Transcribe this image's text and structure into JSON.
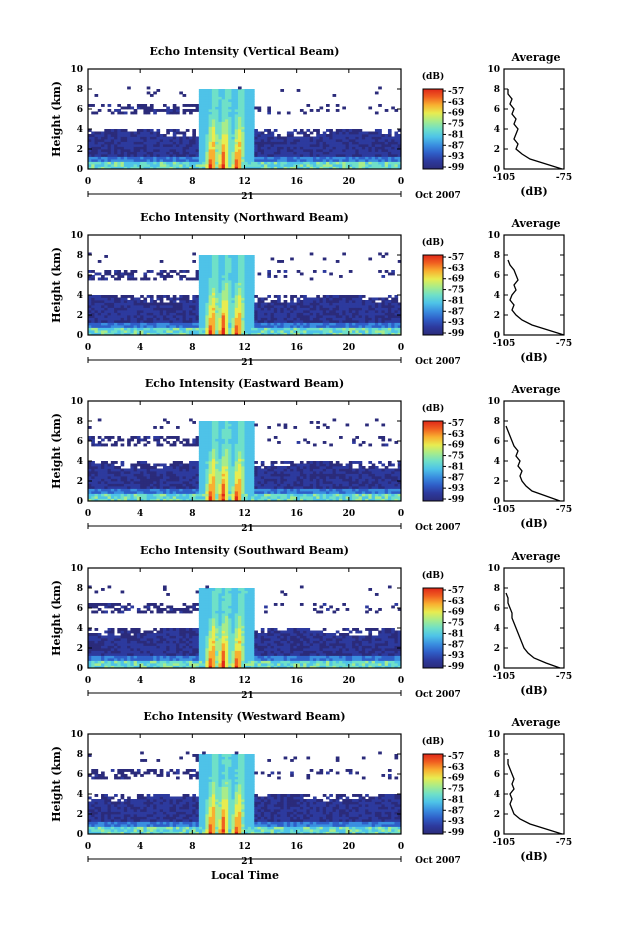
{
  "page": {
    "xlabel": "Local Time"
  },
  "panel_common": {
    "ylabel": "Height (km)",
    "y_ticks": [
      "0",
      "2",
      "4",
      "6",
      "8",
      "10"
    ],
    "x_ticks": [
      "0",
      "4",
      "8",
      "12",
      "16",
      "20",
      "0"
    ],
    "date_day": "21",
    "date_label": "Oct 2007",
    "colorbar_unit": "(dB)",
    "colorbar_ticks": [
      "-57",
      "-63",
      "-69",
      "-75",
      "-81",
      "-87",
      "-93",
      "-99"
    ],
    "avg_title": "Average",
    "avg_xlabel": "(dB)",
    "avg_x_ticks": [
      "-105",
      "-75"
    ],
    "avg_y_ticks": [
      "0",
      "2",
      "4",
      "6",
      "8",
      "10"
    ]
  },
  "colors": {
    "colormap": [
      "#2b2b7a",
      "#2d3a9e",
      "#2f5fc8",
      "#3a8fe0",
      "#4ec3e8",
      "#6fe0c8",
      "#a8ec8a",
      "#e8ec50",
      "#f8b030",
      "#f06020",
      "#e02818"
    ]
  },
  "chart_data": [
    {
      "type": "heatmap",
      "title": "Echo Intensity (Vertical Beam)",
      "xlim": [
        0,
        24
      ],
      "ylim": [
        0,
        10
      ],
      "clim": [
        -99,
        -57
      ],
      "average_profile": {
        "xlim": [
          -105,
          -75
        ],
        "height_km": [
          0,
          0.5,
          1,
          1.5,
          2,
          2.5,
          3,
          3.5,
          4,
          4.5,
          5,
          5.5,
          6,
          6.5,
          7,
          7.5,
          8
        ],
        "db": [
          -76,
          -84,
          -92,
          -96,
          -99,
          -98,
          -100,
          -99,
          -98,
          -100,
          -99,
          -101,
          -100,
          -102,
          -101,
          -103,
          -103
        ]
      }
    },
    {
      "type": "heatmap",
      "title": "Echo Intensity (Northward Beam)",
      "xlim": [
        0,
        24
      ],
      "ylim": [
        0,
        10
      ],
      "clim": [
        -99,
        -57
      ],
      "average_profile": {
        "xlim": [
          -105,
          -75
        ],
        "height_km": [
          0,
          0.5,
          1,
          1.5,
          2,
          2.5,
          3,
          3.5,
          4,
          4.5,
          5,
          5.5,
          6,
          6.5,
          7,
          7.5
        ],
        "db": [
          -75,
          -83,
          -91,
          -96,
          -99,
          -101,
          -100,
          -102,
          -101,
          -99,
          -100,
          -98,
          -99,
          -100,
          -102,
          -103
        ]
      }
    },
    {
      "type": "heatmap",
      "title": "Echo Intensity (Eastward Beam)",
      "xlim": [
        0,
        24
      ],
      "ylim": [
        0,
        10
      ],
      "clim": [
        -99,
        -57
      ],
      "average_profile": {
        "xlim": [
          -105,
          -75
        ],
        "height_km": [
          0,
          0.5,
          1,
          1.5,
          2,
          2.5,
          3,
          3.5,
          4,
          4.5,
          5,
          5.5,
          6,
          6.5,
          7,
          7.5
        ],
        "db": [
          -77,
          -84,
          -91,
          -94,
          -96,
          -97,
          -96,
          -98,
          -97,
          -99,
          -98,
          -100,
          -101,
          -102,
          -103,
          -104
        ]
      }
    },
    {
      "type": "heatmap",
      "title": "Echo Intensity (Southward Beam)",
      "xlim": [
        0,
        24
      ],
      "ylim": [
        0,
        10
      ],
      "clim": [
        -99,
        -57
      ],
      "average_profile": {
        "xlim": [
          -105,
          -75
        ],
        "height_km": [
          0,
          0.5,
          1,
          1.5,
          2,
          2.5,
          3,
          3.5,
          4,
          4.5,
          5,
          5.5,
          6,
          6.5,
          7,
          7.5
        ],
        "db": [
          -77,
          -84,
          -90,
          -93,
          -95,
          -96,
          -97,
          -98,
          -99,
          -100,
          -101,
          -101,
          -102,
          -103,
          -103,
          -104
        ]
      }
    },
    {
      "type": "heatmap",
      "title": "Echo Intensity (Westward Beam)",
      "xlim": [
        0,
        24
      ],
      "ylim": [
        0,
        10
      ],
      "clim": [
        -99,
        -57
      ],
      "average_profile": {
        "xlim": [
          -105,
          -75
        ],
        "height_km": [
          0,
          0.5,
          1,
          1.5,
          2,
          2.5,
          3,
          3.5,
          4,
          4.5,
          5,
          5.5,
          6,
          6.5,
          7,
          7.5
        ],
        "db": [
          -76,
          -84,
          -92,
          -97,
          -100,
          -101,
          -102,
          -101,
          -102,
          -100,
          -101,
          -100,
          -101,
          -102,
          -103,
          -103
        ]
      }
    }
  ]
}
